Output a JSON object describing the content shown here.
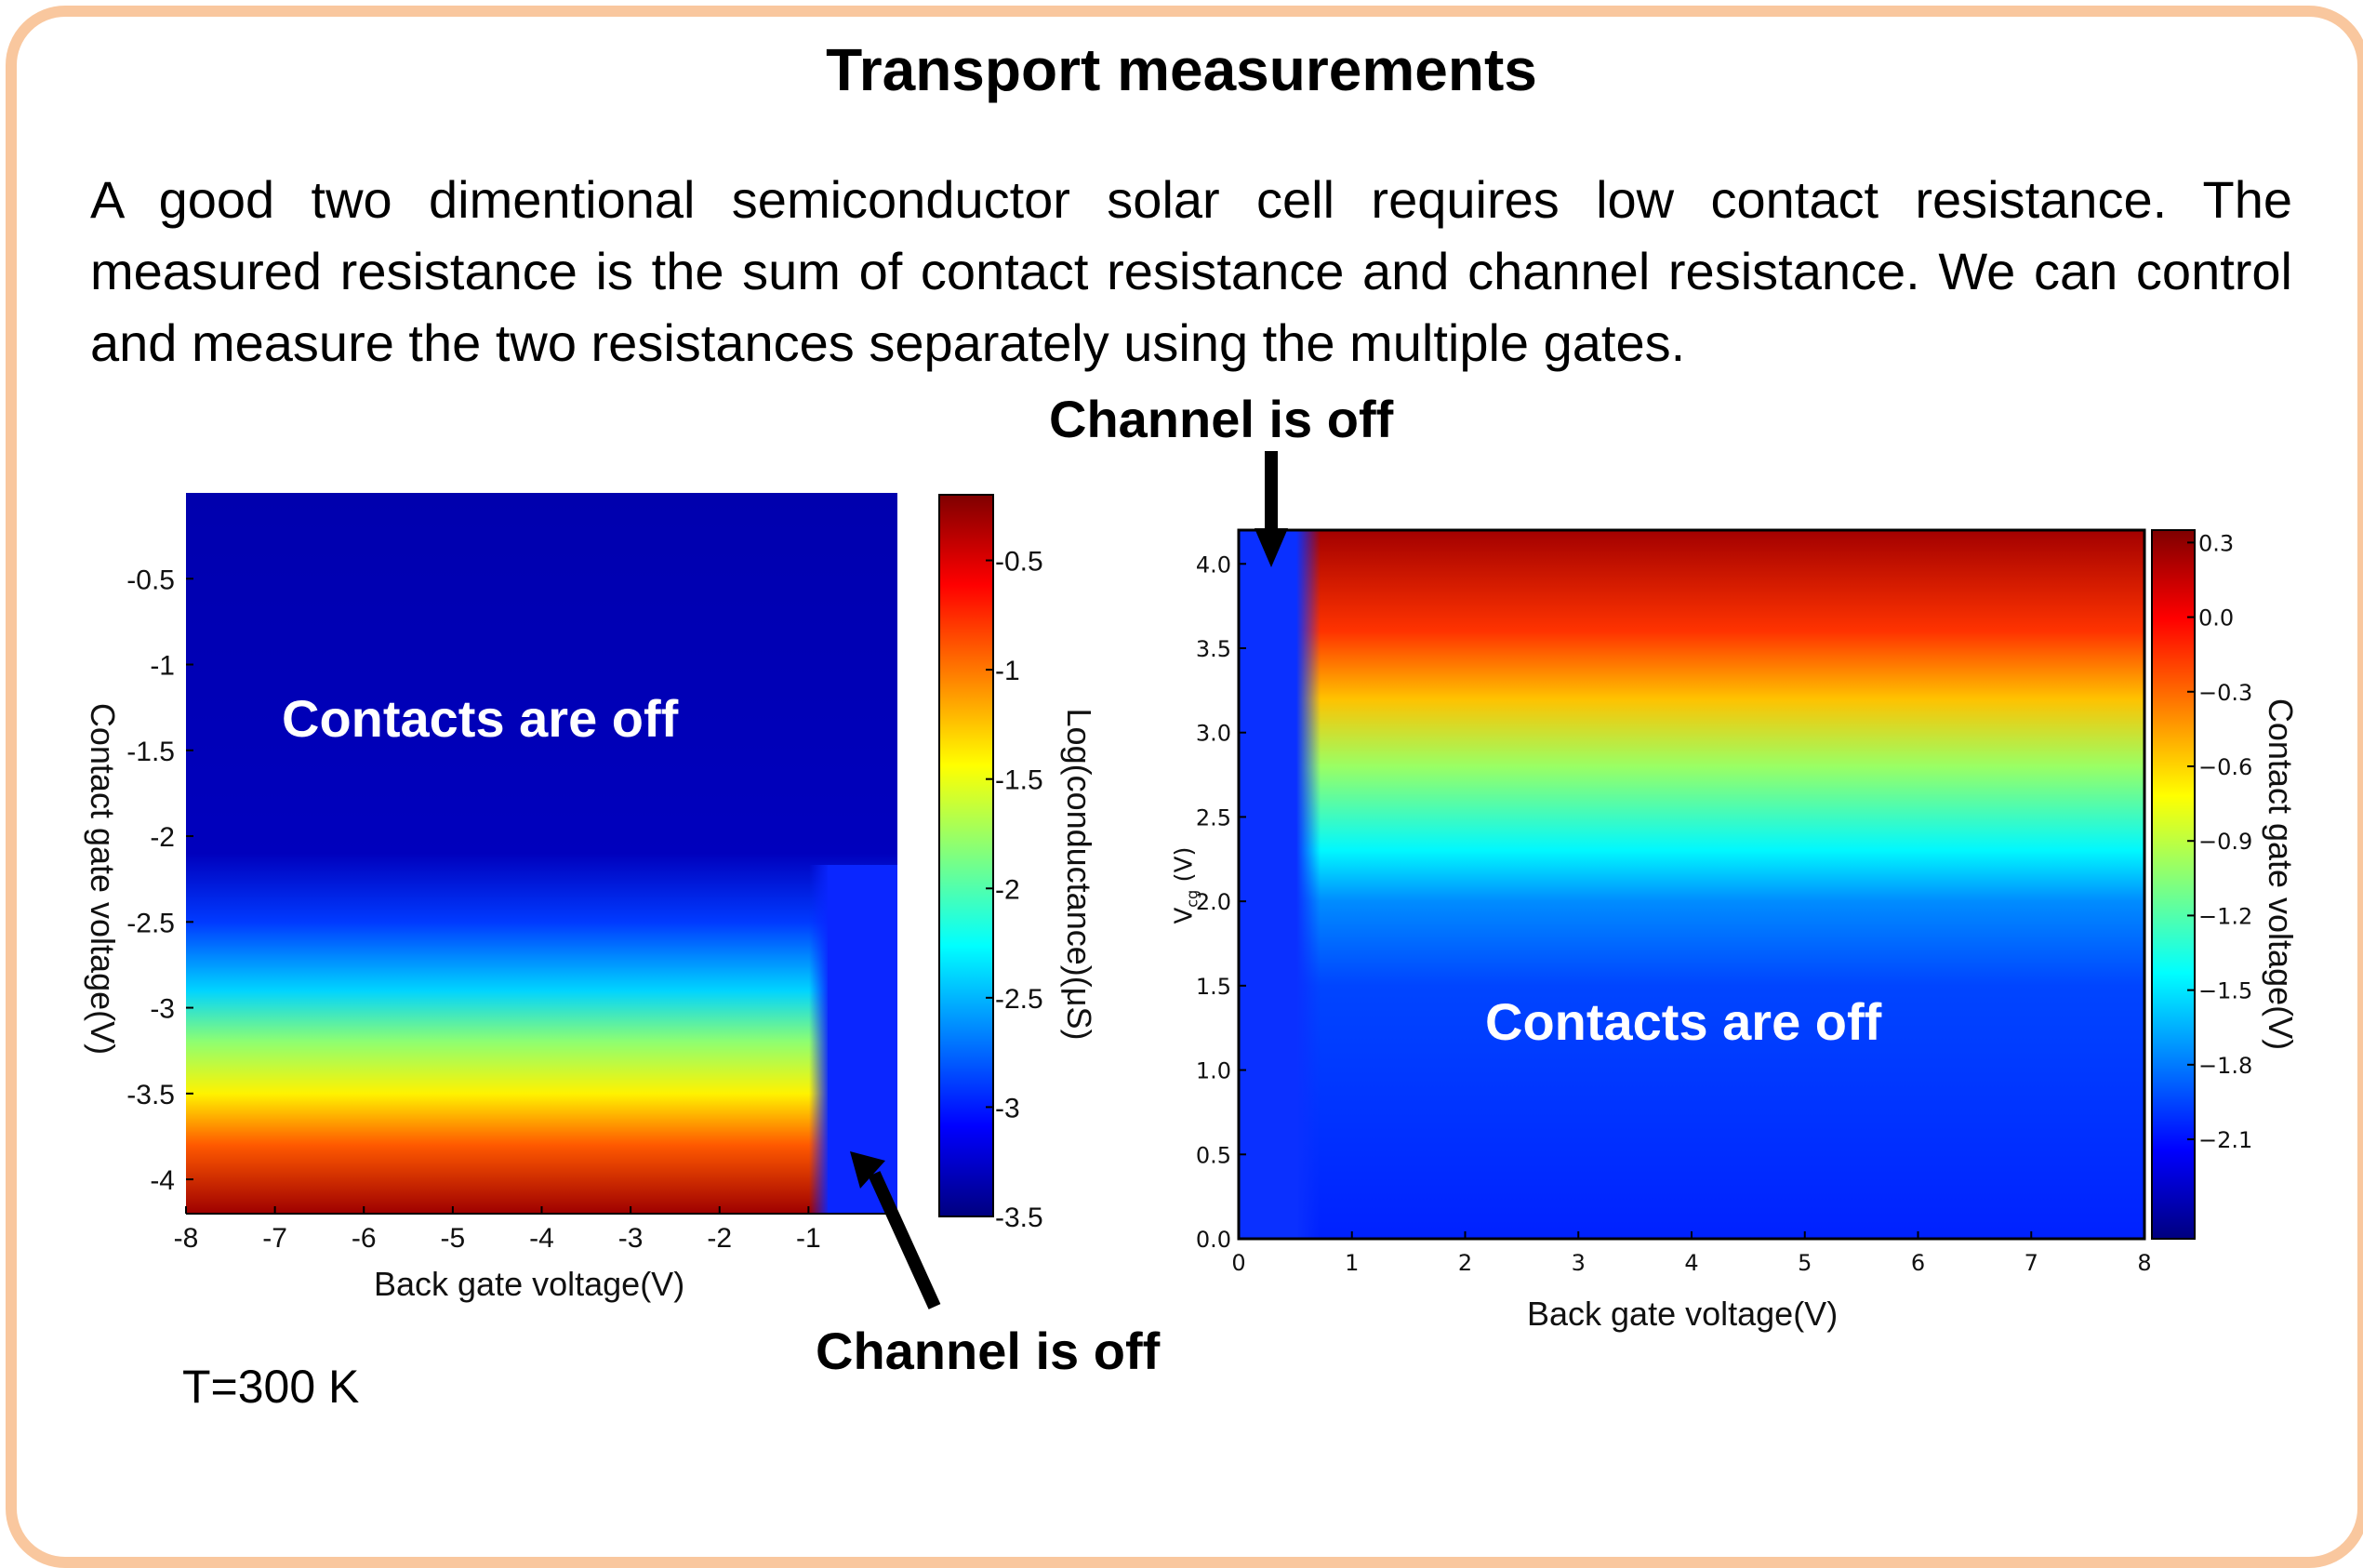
{
  "title": "Transport measurements",
  "paragraph": "A good two dimentional semiconductor solar cell requires low contact resistance. The measured resistance is the sum of contact resistance and channel resistance. We can control and measure the two resistances separately using the multiple gates.",
  "annotations": {
    "top_channel_off": "Channel is off",
    "bottom_channel_off": "Channel is off",
    "left_contacts_off": "Contacts are off",
    "right_contacts_off": "Contacts are off",
    "temperature": "T=300 K"
  },
  "colors": {
    "frame": "#f9c79e",
    "colormap": "jet",
    "overlay_text": "#ffffff"
  },
  "chart_data": [
    {
      "type": "heatmap",
      "title": "",
      "xlabel": "Back gate voltage(V)",
      "ylabel": "Contact gate voltage(V)",
      "xlim": [
        -8,
        0
      ],
      "ylim": [
        -4.2,
        0
      ],
      "x_ticks": [
        "-8",
        "-7",
        "-6",
        "-5",
        "-4",
        "-3",
        "-2",
        "-1"
      ],
      "y_ticks": [
        "-0.5",
        "-1",
        "-1.5",
        "-2",
        "-2.5",
        "-3",
        "-3.5",
        "-4"
      ],
      "colorbar": {
        "label": "Log(conductance)(μS)",
        "range": [
          -3.5,
          -0.2
        ],
        "ticks": [
          "-0.5",
          "-1",
          "-1.5",
          "-2",
          "-2.5",
          "-3",
          "-3.5"
        ]
      },
      "channel_off_threshold_x": -0.6,
      "profile": [
        {
          "y": 0,
          "value": -3.35
        },
        {
          "y": -2.1,
          "value": -3.3
        },
        {
          "y": -2.5,
          "value": -2.9
        },
        {
          "y": -2.9,
          "value": -2.4
        },
        {
          "y": -3.2,
          "value": -1.8
        },
        {
          "y": -3.5,
          "value": -1.4
        },
        {
          "y": -3.8,
          "value": -0.9
        },
        {
          "y": -4.2,
          "value": -0.3
        }
      ]
    },
    {
      "type": "heatmap",
      "title": "",
      "xlabel": "Back gate voltage(V)",
      "ylabel": "V_cg (V)",
      "xlim": [
        0,
        8
      ],
      "ylim": [
        0,
        4.2
      ],
      "x_ticks": [
        "0",
        "1",
        "2",
        "3",
        "4",
        "5",
        "6",
        "7",
        "8"
      ],
      "y_ticks": [
        "0.0",
        "0.5",
        "1.0",
        "1.5",
        "2.0",
        "2.5",
        "3.0",
        "3.5",
        "4.0"
      ],
      "colorbar": {
        "label": "Contact gate voltage(V)",
        "range": [
          -2.5,
          0.35
        ],
        "ticks": [
          "0.3",
          "0.0",
          "−0.3",
          "−0.6",
          "−0.9",
          "−1.2",
          "−1.5",
          "−1.8",
          "−2.1"
        ]
      },
      "channel_off_threshold_x": 0.6,
      "profile": [
        {
          "y": 0,
          "value": -2.05
        },
        {
          "y": 1.5,
          "value": -1.95
        },
        {
          "y": 2.0,
          "value": -1.75
        },
        {
          "y": 2.3,
          "value": -1.45
        },
        {
          "y": 2.8,
          "value": -1.0
        },
        {
          "y": 3.2,
          "value": -0.55
        },
        {
          "y": 3.6,
          "value": -0.15
        },
        {
          "y": 4.2,
          "value": 0.25
        }
      ]
    }
  ]
}
